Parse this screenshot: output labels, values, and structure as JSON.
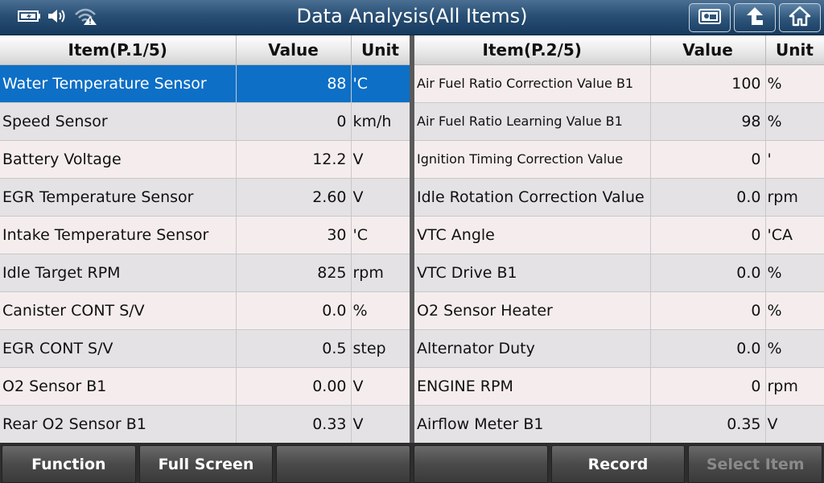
{
  "header": {
    "title": "Data Analysis(All Items)",
    "status_icons": [
      "battery-icon",
      "speaker-icon",
      "wifi-warning-icon"
    ],
    "nav_buttons": [
      "screenshot-icon",
      "back-icon",
      "home-icon"
    ]
  },
  "left_table": {
    "columns": [
      "Item(P.1/5)",
      "Value",
      "Unit"
    ],
    "selected_row": 0,
    "rows": [
      {
        "item": "Water Temperature Sensor",
        "value": "88",
        "unit": "'C"
      },
      {
        "item": "Speed Sensor",
        "value": "0",
        "unit": "km/h"
      },
      {
        "item": "Battery Voltage",
        "value": "12.2",
        "unit": "V"
      },
      {
        "item": "EGR Temperature Sensor",
        "value": "2.60",
        "unit": "V"
      },
      {
        "item": "Intake Temperature Sensor",
        "value": "30",
        "unit": "'C"
      },
      {
        "item": "Idle Target RPM",
        "value": "825",
        "unit": "rpm"
      },
      {
        "item": "Canister CONT S/V",
        "value": "0.0",
        "unit": "%"
      },
      {
        "item": "EGR CONT S/V",
        "value": "0.5",
        "unit": "step"
      },
      {
        "item": "O2 Sensor B1",
        "value": "0.00",
        "unit": "V"
      },
      {
        "item": "Rear O2 Sensor B1",
        "value": "0.33",
        "unit": "V"
      }
    ]
  },
  "right_table": {
    "columns": [
      "Item(P.2/5)",
      "Value",
      "Unit"
    ],
    "rows": [
      {
        "item": "Air Fuel Ratio Correction Value B1",
        "value": "100",
        "unit": "%"
      },
      {
        "item": "Air Fuel Ratio Learning Value B1",
        "value": "98",
        "unit": "%"
      },
      {
        "item": "Ignition Timing Correction Value",
        "value": "0",
        "unit": "'"
      },
      {
        "item": "Idle Rotation Correction Value",
        "value": "0.0",
        "unit": "rpm"
      },
      {
        "item": "VTC Angle",
        "value": "0",
        "unit": "'CA"
      },
      {
        "item": "VTC Drive B1",
        "value": "0.0",
        "unit": "%"
      },
      {
        "item": "O2 Sensor Heater",
        "value": "0",
        "unit": "%"
      },
      {
        "item": "Alternator Duty",
        "value": "0.0",
        "unit": "%"
      },
      {
        "item": "ENGINE RPM",
        "value": "0",
        "unit": "rpm"
      },
      {
        "item": "Airflow Meter B1",
        "value": "0.35",
        "unit": "V"
      }
    ]
  },
  "toolbar": {
    "buttons": [
      {
        "label": "Function",
        "enabled": true
      },
      {
        "label": "Full Screen",
        "enabled": true
      },
      {
        "label": "",
        "enabled": true
      },
      {
        "label": "",
        "enabled": true
      },
      {
        "label": "Record",
        "enabled": true
      },
      {
        "label": "Select Item",
        "enabled": false
      }
    ]
  }
}
